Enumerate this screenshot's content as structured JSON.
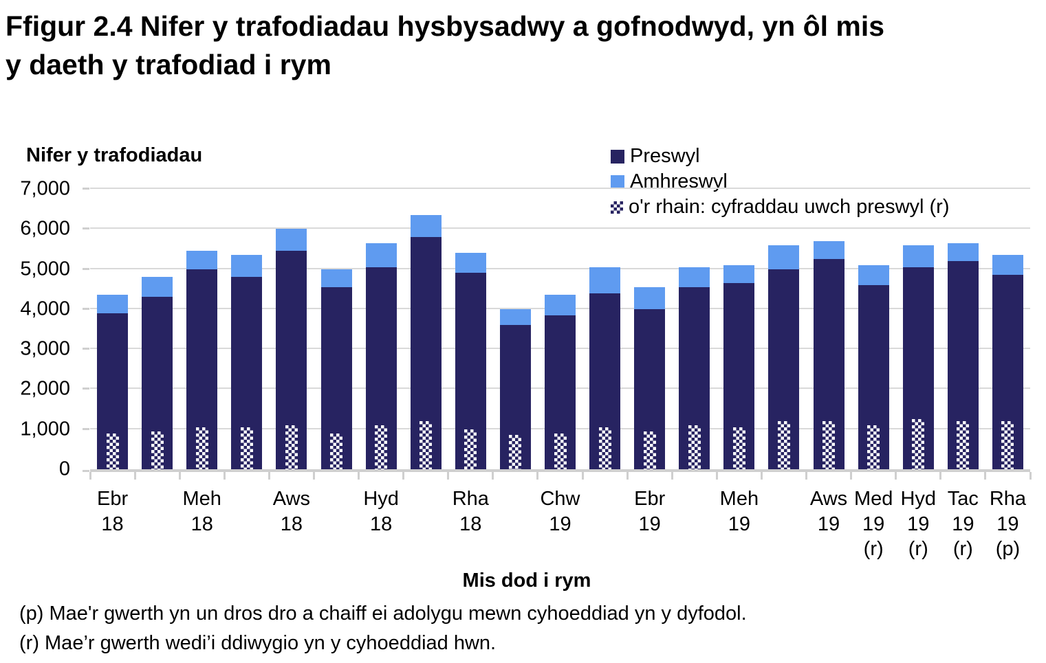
{
  "page": {
    "title_line1": "Ffigur 2.4  Nifer y trafodiadau hysbysadwy a gofnodwyd, yn ôl mis",
    "title_line2": "y daeth y trafodiad i rym"
  },
  "chart_data": {
    "type": "stacked-bar",
    "y_axis": {
      "title": "Nifer y trafodiadau",
      "min": 0,
      "max": 7000,
      "tick_values": [
        0,
        1000,
        2000,
        3000,
        4000,
        5000,
        6000,
        7000
      ],
      "tick_labels": [
        "0",
        "1,000",
        "2,000",
        "3,000",
        "4,000",
        "5,000",
        "6,000",
        "7,000"
      ],
      "grid": true
    },
    "x_axis": {
      "title": "Mis dod i rym"
    },
    "categories": [
      [
        "Ebr",
        "18"
      ],
      [],
      [
        "Meh",
        "18"
      ],
      [],
      [
        "Aws",
        "18"
      ],
      [],
      [
        "Hyd",
        "18"
      ],
      [],
      [
        "Rha",
        "18"
      ],
      [],
      [
        "Chw",
        "19"
      ],
      [],
      [
        "Ebr",
        "19"
      ],
      [],
      [
        "Meh",
        "19"
      ],
      [],
      [
        "Aws",
        "19"
      ],
      [
        "Med",
        "19",
        "(r)"
      ],
      [
        "Hyd",
        "19",
        "(r)"
      ],
      [
        "Tac",
        "19",
        "(r)"
      ],
      [
        "Rha",
        "19",
        "(p)"
      ]
    ],
    "series": [
      {
        "name": "Preswyl",
        "color": "#272361",
        "values": [
          3900,
          4300,
          5000,
          4800,
          5450,
          4550,
          5050,
          5800,
          4900,
          3600,
          3850,
          4400,
          4000,
          4550,
          4650,
          5000,
          5250,
          4600,
          5050,
          5200,
          4850
        ]
      },
      {
        "name": "Amhreswyl",
        "color": "#5f9bf0",
        "values": [
          450,
          500,
          450,
          550,
          550,
          450,
          600,
          550,
          500,
          400,
          500,
          650,
          550,
          500,
          450,
          600,
          450,
          500,
          550,
          450,
          500
        ]
      },
      {
        "name": "o'r rhain: cyfraddau uwch preswyl (r)",
        "color": "#272361",
        "pattern": "checker",
        "values": [
          900,
          950,
          1050,
          1050,
          1100,
          900,
          1100,
          1200,
          1000,
          850,
          900,
          1050,
          950,
          1100,
          1050,
          1200,
          1200,
          1100,
          1250,
          1200,
          1200
        ]
      }
    ],
    "legend_position": "top-right",
    "footnotes": [
      "(p) Mae'r gwerth yn un dros dro a chaiff ei adolygu mewn cyhoeddiad yn y dyfodol.",
      "(r) Mae’r gwerth wedi’i ddiwygio yn y cyhoeddiad hwn."
    ]
  }
}
